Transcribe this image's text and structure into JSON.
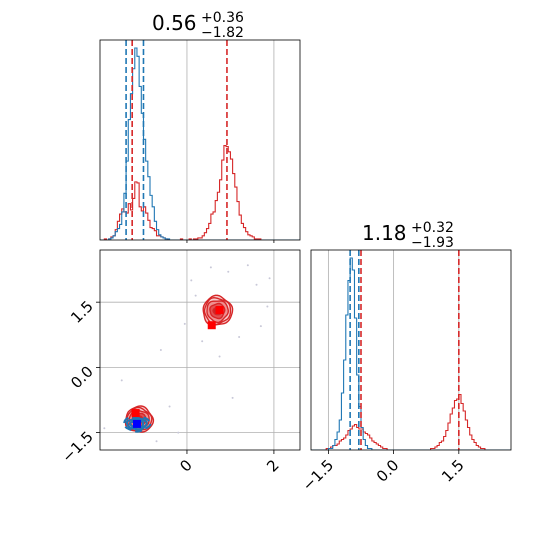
{
  "chart_data": {
    "type": "corner",
    "colors": {
      "series_a": "#d62728",
      "series_b": "#1f77b4",
      "grid": "#b0b0b0"
    },
    "params": [
      {
        "title_value": "0.56",
        "title_plus": "+0.36",
        "title_minus": "−1.82",
        "range": [
          -2.0,
          2.6
        ],
        "ticks": [
          {
            "value": 0,
            "label": "0"
          },
          {
            "value": 2,
            "label": "2"
          }
        ],
        "series_a_quantiles": [
          -1.26,
          0.92
        ],
        "series_b_quantiles": [
          -1.4,
          -1.0
        ]
      },
      {
        "title_value": "1.18",
        "title_plus": "+0.32",
        "title_minus": "−1.93",
        "range": [
          -1.9,
          2.7
        ],
        "ticks": [
          {
            "value": -1.5,
            "label": "−1.5"
          },
          {
            "value": 0.0,
            "label": "0.0"
          },
          {
            "value": 1.5,
            "label": "1.5"
          }
        ],
        "series_a_quantiles": [
          -0.75,
          1.5
        ],
        "series_b_quantiles": [
          -1.0,
          -0.8
        ]
      }
    ],
    "hist_param1": {
      "bins": [
        -2.0,
        -1.95,
        -1.9,
        -1.85,
        -1.8,
        -1.75,
        -1.7,
        -1.65,
        -1.6,
        -1.55,
        -1.5,
        -1.45,
        -1.4,
        -1.35,
        -1.3,
        -1.25,
        -1.2,
        -1.15,
        -1.1,
        -1.05,
        -1.0,
        -0.95,
        -0.9,
        -0.85,
        -0.8,
        -0.75,
        -0.7,
        -0.65,
        -0.6,
        -0.55,
        -0.5,
        -0.45,
        -0.4,
        -0.35,
        -0.3,
        -0.25,
        -0.2,
        -0.15,
        -0.1,
        -0.05,
        0.0,
        0.05,
        0.1,
        0.15,
        0.2,
        0.25,
        0.3,
        0.35,
        0.4,
        0.45,
        0.5,
        0.55,
        0.6,
        0.65,
        0.7,
        0.75,
        0.8,
        0.85,
        0.9,
        0.95,
        1.0,
        1.05,
        1.1,
        1.15,
        1.2,
        1.25,
        1.3,
        1.35,
        1.4,
        1.45,
        1.5,
        1.55,
        1.6,
        1.65,
        1.7,
        1.75,
        1.8,
        1.85,
        1.9,
        1.95,
        2.0,
        2.05,
        2.1,
        2.15,
        2.2,
        2.25,
        2.3,
        2.35,
        2.4,
        2.45,
        2.5,
        2.55,
        2.6
      ],
      "series_a": [
        0,
        0,
        1,
        0,
        1,
        3,
        4,
        10,
        18,
        25,
        30,
        27,
        26,
        35,
        29,
        40,
        56,
        55,
        32,
        28,
        32,
        26,
        19,
        12,
        11,
        9,
        4,
        4,
        3,
        2,
        1,
        0,
        0,
        0,
        0,
        0,
        0,
        1,
        0,
        0,
        0,
        1,
        0,
        1,
        1,
        2,
        2,
        4,
        7,
        11,
        16,
        25,
        27,
        38,
        46,
        58,
        77,
        91,
        90,
        85,
        78,
        64,
        51,
        37,
        24,
        16,
        12,
        8,
        5,
        4,
        3,
        1,
        1,
        1,
        0,
        0,
        0,
        0,
        0,
        0,
        0,
        0,
        0,
        0,
        0,
        0,
        0,
        0,
        0,
        0,
        0,
        0
      ],
      "series_b": [
        0,
        0,
        0,
        0,
        1,
        2,
        4,
        8,
        11,
        15,
        27,
        45,
        76,
        116,
        141,
        165,
        185,
        177,
        148,
        122,
        97,
        76,
        61,
        43,
        32,
        18,
        10,
        5,
        3,
        2,
        1,
        1,
        0,
        0,
        0,
        0,
        0,
        0,
        0,
        0,
        0,
        0,
        0,
        0,
        0,
        0,
        0,
        0,
        0,
        0,
        0,
        0,
        0,
        0,
        0,
        0,
        0,
        0,
        0,
        0,
        0,
        0,
        0,
        0,
        0,
        0,
        0,
        0,
        0,
        0,
        0,
        0,
        0,
        0,
        0,
        0,
        0,
        0,
        0,
        0,
        0,
        0,
        0,
        0,
        0,
        0,
        0,
        0,
        0,
        0,
        0,
        0
      ]
    },
    "hist_param2": {
      "bins": [
        -1.9,
        -1.85,
        -1.8,
        -1.75,
        -1.7,
        -1.65,
        -1.6,
        -1.55,
        -1.5,
        -1.45,
        -1.4,
        -1.35,
        -1.3,
        -1.25,
        -1.2,
        -1.15,
        -1.1,
        -1.05,
        -1.0,
        -0.95,
        -0.9,
        -0.85,
        -0.8,
        -0.75,
        -0.7,
        -0.65,
        -0.6,
        -0.55,
        -0.5,
        -0.45,
        -0.4,
        -0.35,
        -0.3,
        -0.25,
        -0.2,
        -0.15,
        -0.1,
        -0.05,
        0.0,
        0.05,
        0.1,
        0.15,
        0.2,
        0.25,
        0.3,
        0.35,
        0.4,
        0.45,
        0.5,
        0.55,
        0.6,
        0.65,
        0.7,
        0.75,
        0.8,
        0.85,
        0.9,
        0.95,
        1.0,
        1.05,
        1.1,
        1.15,
        1.2,
        1.25,
        1.3,
        1.35,
        1.4,
        1.45,
        1.5,
        1.55,
        1.6,
        1.65,
        1.7,
        1.75,
        1.8,
        1.85,
        1.9,
        1.95,
        2.0,
        2.05,
        2.1,
        2.15,
        2.2,
        2.25,
        2.3,
        2.35,
        2.4,
        2.45,
        2.5,
        2.55,
        2.6,
        2.65,
        2.7
      ],
      "series_a": [
        0,
        0,
        0,
        0,
        0,
        0,
        0,
        1,
        1,
        2,
        3,
        3,
        4,
        6,
        7,
        8,
        10,
        13,
        14,
        16,
        17,
        15,
        14,
        14,
        12,
        11,
        10,
        8,
        6,
        5,
        4,
        3,
        2,
        1,
        1,
        0,
        0,
        0,
        0,
        0,
        0,
        0,
        0,
        0,
        0,
        0,
        0,
        0,
        0,
        0,
        0,
        0,
        0,
        0,
        0,
        1,
        1,
        2,
        3,
        5,
        6,
        9,
        13,
        18,
        24,
        28,
        33,
        34,
        37,
        31,
        26,
        20,
        15,
        10,
        7,
        5,
        3,
        2,
        1,
        1,
        0,
        0,
        0,
        0,
        0,
        0,
        0,
        0,
        0,
        0,
        0,
        0
      ],
      "series_b": [
        0,
        0,
        0,
        0,
        0,
        0,
        0,
        0,
        1,
        1,
        3,
        7,
        12,
        20,
        38,
        60,
        90,
        113,
        128,
        120,
        88,
        50,
        29,
        15,
        7,
        3,
        1,
        1,
        0,
        0,
        0,
        0,
        0,
        0,
        0,
        0,
        0,
        0,
        0,
        0,
        0,
        0,
        0,
        0,
        0,
        0,
        0,
        0,
        0,
        0,
        0,
        0,
        0,
        0,
        0,
        0,
        0,
        0,
        0,
        0,
        0,
        0,
        0,
        0,
        0,
        0,
        0,
        0,
        0,
        0,
        0,
        0,
        0,
        0,
        0,
        0,
        0,
        0,
        0,
        0,
        0,
        0,
        0,
        0,
        0,
        0,
        0,
        0,
        0,
        0,
        0,
        0
      ]
    },
    "scatter_2d": {
      "series_a_modes": [
        {
          "x": -1.1,
          "y": -1.2,
          "sx": 0.3,
          "sy": 0.28
        },
        {
          "x": 0.7,
          "y": 1.3,
          "sx": 0.32,
          "sy": 0.32
        }
      ],
      "series_b_modes": [
        {
          "x": -1.15,
          "y": -1.3,
          "sx": 0.3,
          "sy": 0.1
        }
      ],
      "markers": [
        {
          "series": "a",
          "x": 0.75,
          "y": 1.32
        },
        {
          "series": "a",
          "x": 0.57,
          "y": 0.97
        },
        {
          "series": "a",
          "x": -1.18,
          "y": -1.05
        },
        {
          "series": "b",
          "x": -1.15,
          "y": -1.3
        }
      ],
      "faint_points": [
        {
          "x": 0.55,
          "y": 2.3
        },
        {
          "x": 0.95,
          "y": 2.2
        },
        {
          "x": 1.6,
          "y": 1.9
        },
        {
          "x": 1.85,
          "y": 1.4
        },
        {
          "x": 0.2,
          "y": 1.65
        },
        {
          "x": -0.05,
          "y": 1.0
        },
        {
          "x": 0.35,
          "y": 0.6
        },
        {
          "x": 1.2,
          "y": 0.7
        },
        {
          "x": 1.9,
          "y": 2.05
        },
        {
          "x": 0.1,
          "y": 2.0
        },
        {
          "x": -1.5,
          "y": -0.3
        },
        {
          "x": -0.4,
          "y": -0.9
        },
        {
          "x": -0.2,
          "y": -1.5
        },
        {
          "x": -1.9,
          "y": -1.4
        },
        {
          "x": -0.7,
          "y": -1.7
        },
        {
          "x": 1.05,
          "y": -0.7
        },
        {
          "x": 0.75,
          "y": 0.25
        },
        {
          "x": 1.7,
          "y": 0.95
        },
        {
          "x": -0.6,
          "y": 0.4
        },
        {
          "x": 1.4,
          "y": 2.35
        }
      ]
    }
  }
}
